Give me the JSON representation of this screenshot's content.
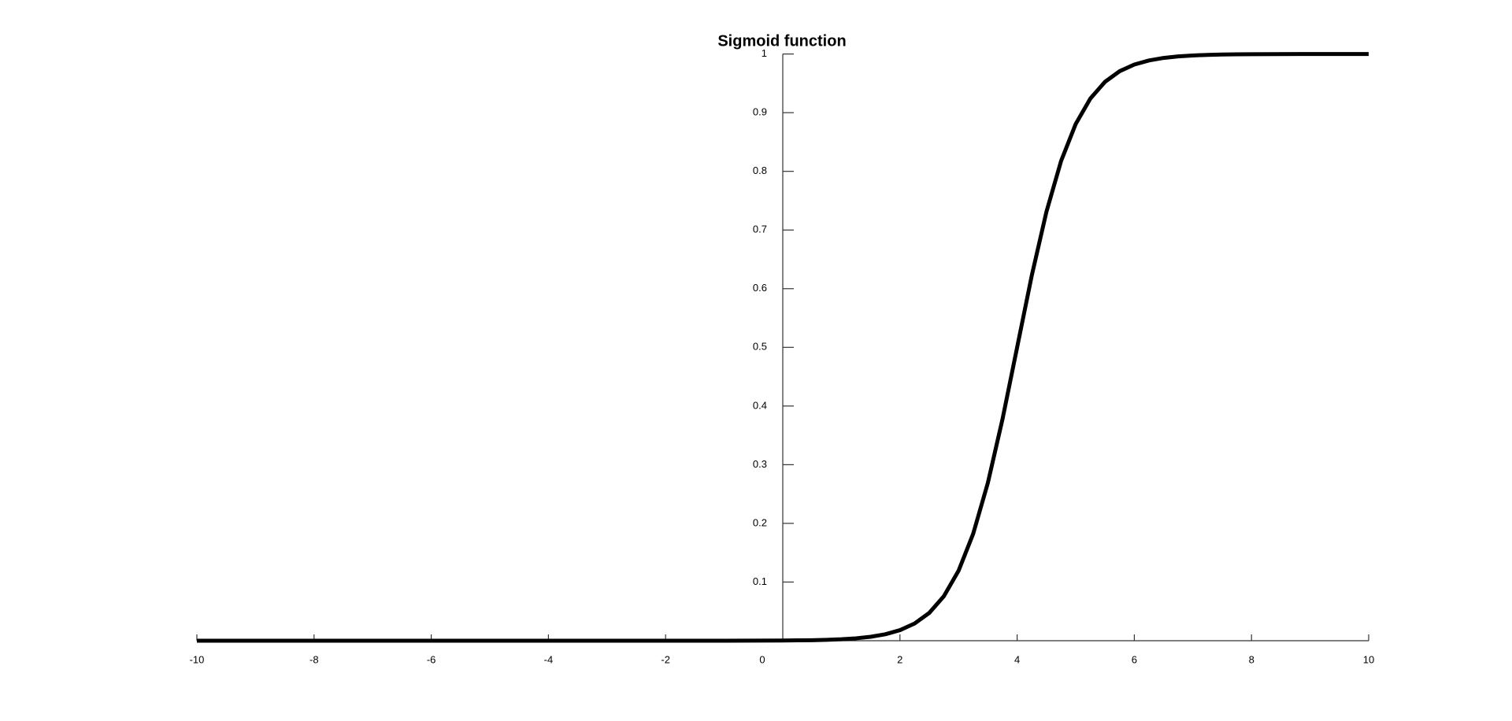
{
  "chart_data": {
    "type": "line",
    "title": "Sigmoid function",
    "x": [
      -10,
      -9,
      -8,
      -7,
      -6,
      -5,
      -4,
      -3,
      -2,
      -1,
      0,
      0.25,
      0.5,
      0.75,
      1,
      1.25,
      1.5,
      1.75,
      2,
      2.25,
      2.5,
      2.75,
      3,
      3.25,
      3.5,
      3.75,
      4,
      4.25,
      4.5,
      4.75,
      5,
      5.25,
      5.5,
      5.75,
      6,
      6.25,
      6.5,
      6.75,
      7,
      7.25,
      7.5,
      7.75,
      8,
      9,
      10
    ],
    "values": [
      0,
      0,
      0,
      0,
      0,
      0,
      0,
      0,
      0,
      0,
      0.0003,
      0.0006,
      0.0009,
      0.0015,
      0.0025,
      0.0041,
      0.0067,
      0.011,
      0.018,
      0.0293,
      0.0474,
      0.0759,
      0.1192,
      0.1824,
      0.2689,
      0.3775,
      0.5,
      0.6225,
      0.7311,
      0.8176,
      0.8808,
      0.9241,
      0.9526,
      0.9707,
      0.982,
      0.989,
      0.9933,
      0.9959,
      0.9975,
      0.9985,
      0.9991,
      0.9994,
      0.9997,
      1,
      1
    ],
    "color": "#000000",
    "xlim": [
      -10,
      10
    ],
    "xticks": [
      -10,
      -8,
      -6,
      -4,
      -2,
      0,
      2,
      4,
      6,
      8,
      10
    ],
    "ylim": [
      0,
      1
    ],
    "yticks": [
      0.1,
      0.2,
      0.3,
      0.4,
      0.5,
      0.6,
      0.7,
      0.8,
      0.9,
      1
    ],
    "grid": false
  }
}
